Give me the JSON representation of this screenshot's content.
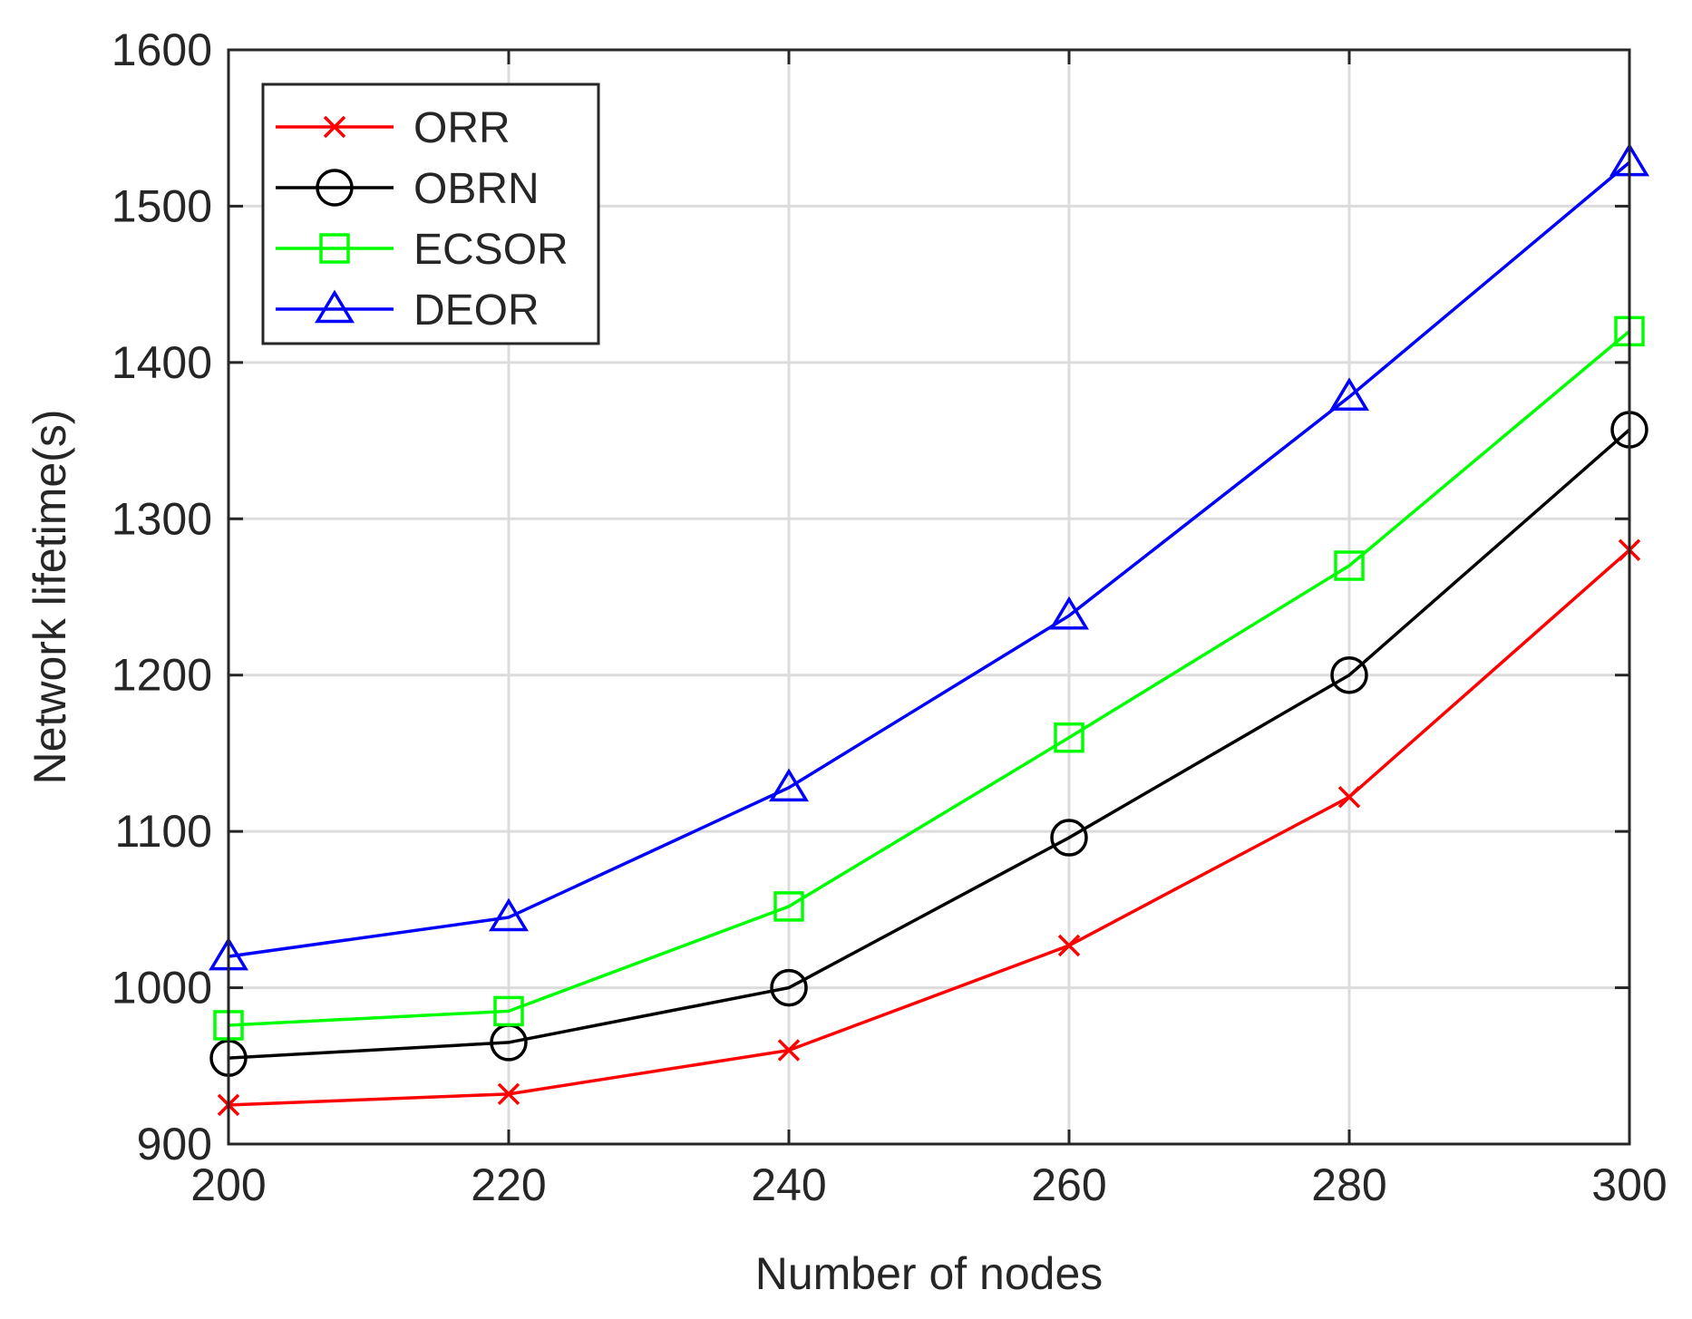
{
  "chart_data": {
    "type": "line",
    "title": "",
    "xlabel": "Number of nodes",
    "ylabel": "Network lifetime(s)",
    "x": [
      200,
      220,
      240,
      260,
      280,
      300
    ],
    "xlim": [
      200,
      300
    ],
    "ylim": [
      900,
      1600
    ],
    "xticks": [
      200,
      220,
      240,
      260,
      280,
      300
    ],
    "yticks": [
      900,
      1000,
      1100,
      1200,
      1300,
      1400,
      1500,
      1600
    ],
    "grid": true,
    "legend_position": "top-left",
    "series": [
      {
        "name": "ORR",
        "color": "#ff0000",
        "marker": "x",
        "values": [
          925,
          932,
          960,
          1027,
          1122,
          1280
        ]
      },
      {
        "name": "OBRN",
        "color": "#000000",
        "marker": "circle",
        "values": [
          955,
          965,
          1000,
          1096,
          1200,
          1357
        ]
      },
      {
        "name": "ECSOR",
        "color": "#00ff00",
        "marker": "square",
        "values": [
          976,
          985,
          1052,
          1160,
          1270,
          1420
        ]
      },
      {
        "name": "DEOR",
        "color": "#0000ff",
        "marker": "triangle",
        "values": [
          1020,
          1045,
          1128,
          1238,
          1378,
          1528
        ]
      }
    ]
  }
}
